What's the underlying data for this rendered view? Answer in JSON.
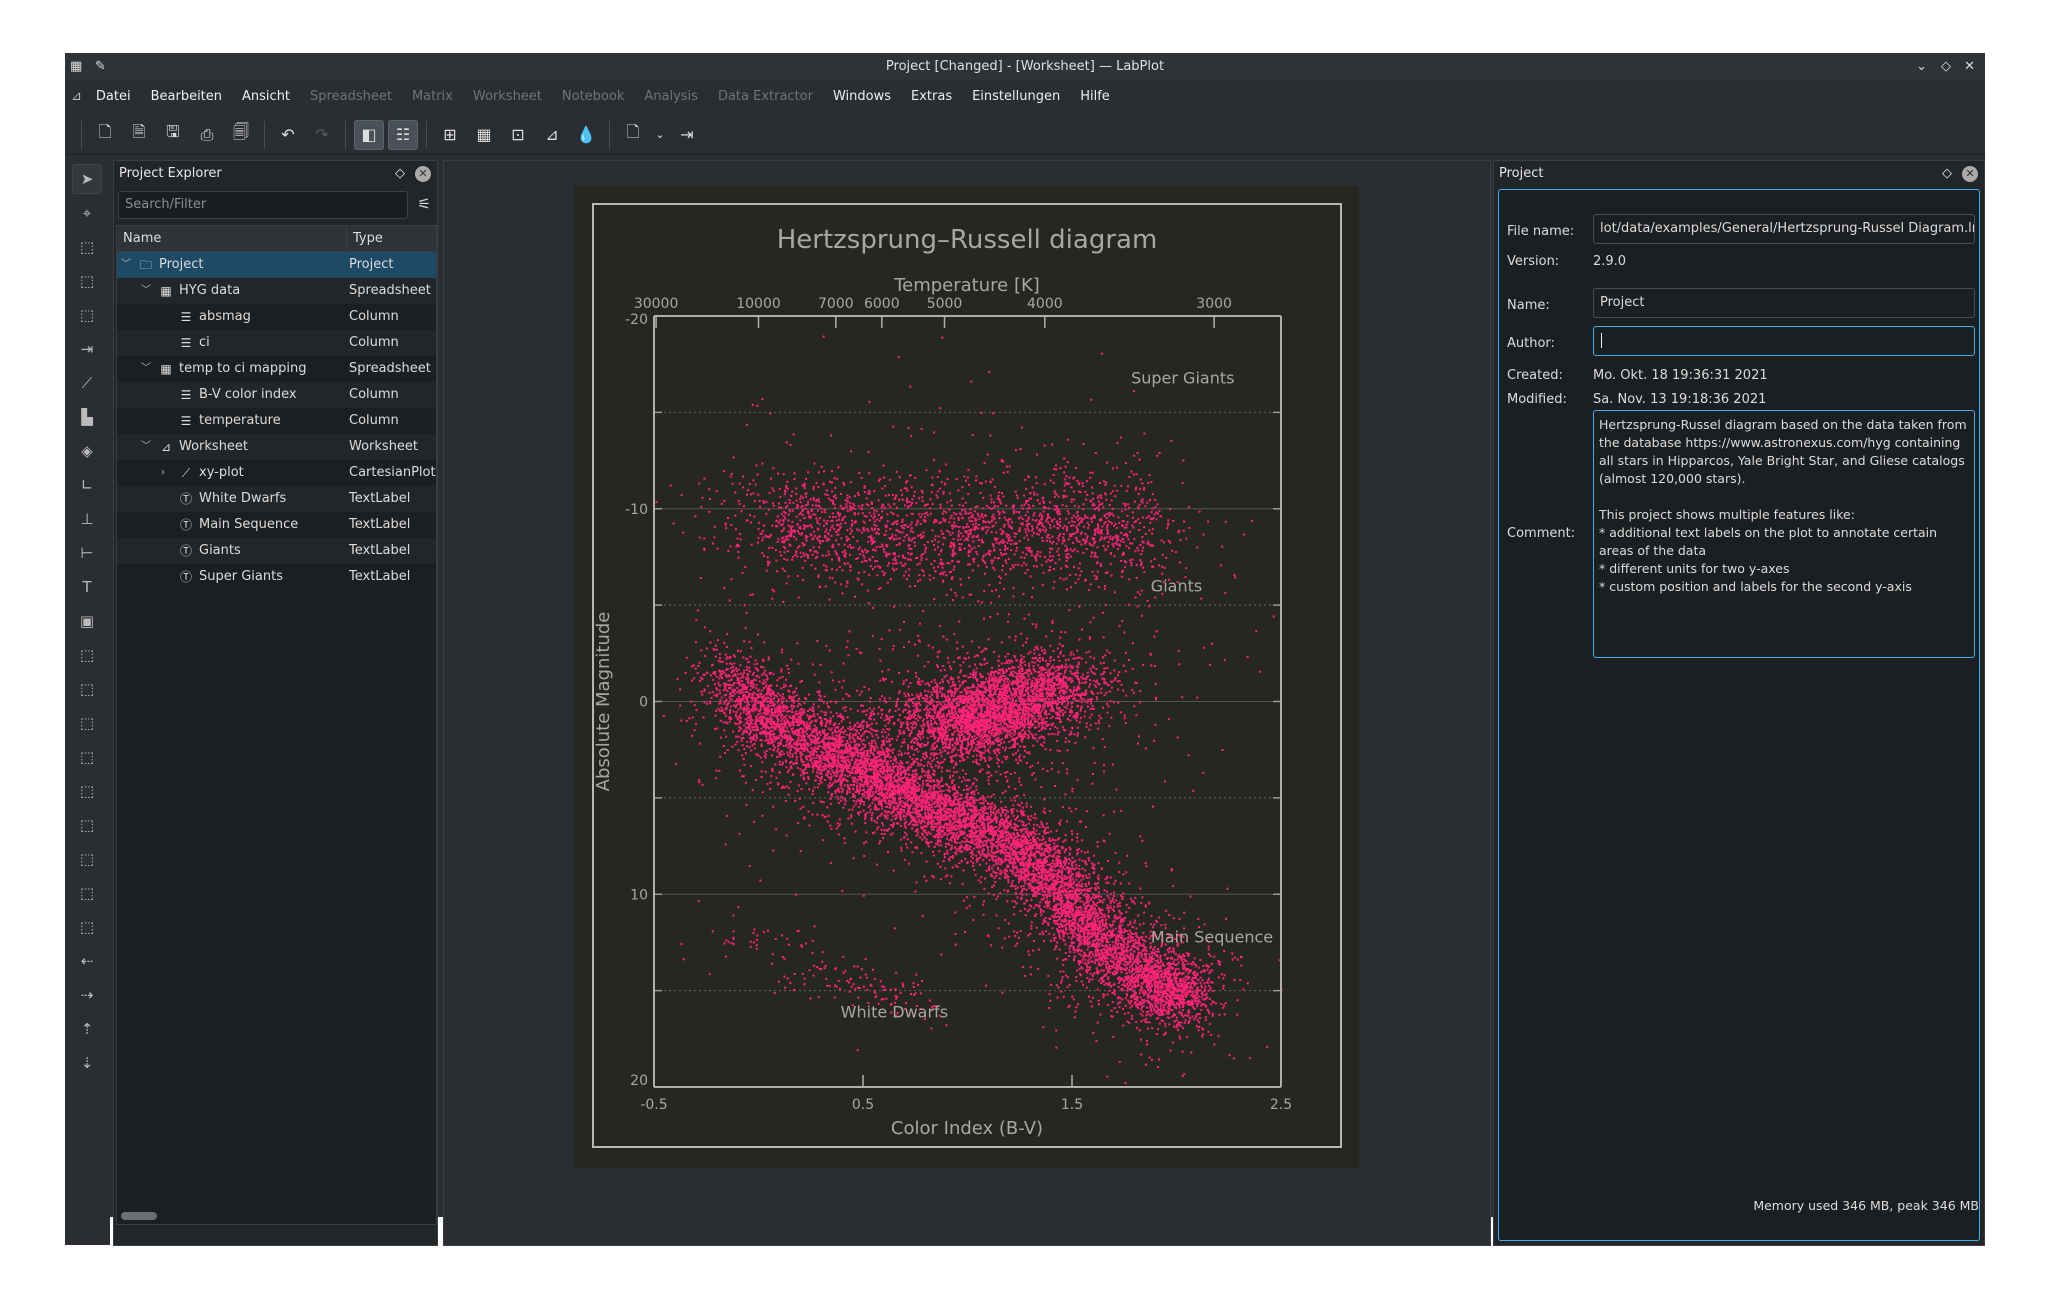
{
  "window": {
    "title": "Project [Changed] - [Worksheet] — LabPlot"
  },
  "menu": [
    {
      "label": "Datei",
      "enabled": true
    },
    {
      "label": "Bearbeiten",
      "enabled": true
    },
    {
      "label": "Ansicht",
      "enabled": true
    },
    {
      "label": "Spreadsheet",
      "enabled": false
    },
    {
      "label": "Matrix",
      "enabled": false
    },
    {
      "label": "Worksheet",
      "enabled": false
    },
    {
      "label": "Notebook",
      "enabled": false
    },
    {
      "label": "Analysis",
      "enabled": false
    },
    {
      "label": "Data Extractor",
      "enabled": false
    },
    {
      "label": "Windows",
      "enabled": true
    },
    {
      "label": "Extras",
      "enabled": true
    },
    {
      "label": "Einstellungen",
      "enabled": true
    },
    {
      "label": "Hilfe",
      "enabled": true
    }
  ],
  "explorer": {
    "title": "Project Explorer",
    "search_placeholder": "Search/Filter",
    "columns": [
      "Name",
      "Type"
    ],
    "rows": [
      {
        "name": "Project",
        "type": "Project",
        "level": 0,
        "icon": "folder-icon",
        "toggle": "expanded",
        "selected": true
      },
      {
        "name": "HYG data",
        "type": "Spreadsheet",
        "level": 1,
        "icon": "spreadsheet-icon",
        "toggle": "expanded"
      },
      {
        "name": "absmag",
        "type": "Column",
        "level": 2,
        "icon": "column-icon"
      },
      {
        "name": "ci",
        "type": "Column",
        "level": 2,
        "icon": "column-icon"
      },
      {
        "name": "temp to ci mapping",
        "type": "Spreadsheet",
        "level": 1,
        "icon": "spreadsheet-icon",
        "toggle": "expanded"
      },
      {
        "name": "B-V color index",
        "type": "Column",
        "level": 2,
        "icon": "column-icon"
      },
      {
        "name": "temperature",
        "type": "Column",
        "level": 2,
        "icon": "column-icon"
      },
      {
        "name": "Worksheet",
        "type": "Worksheet",
        "level": 1,
        "icon": "worksheet-icon",
        "toggle": "expanded"
      },
      {
        "name": "xy-plot",
        "type": "CartesianPlot",
        "level": 2,
        "icon": "plot-icon",
        "toggle": "collapsed"
      },
      {
        "name": "White Dwarfs",
        "type": "TextLabel",
        "level": 2,
        "icon": "text-label-icon"
      },
      {
        "name": "Main Sequence",
        "type": "TextLabel",
        "level": 2,
        "icon": "text-label-icon"
      },
      {
        "name": "Giants",
        "type": "TextLabel",
        "level": 2,
        "icon": "text-label-icon"
      },
      {
        "name": "Super Giants",
        "type": "TextLabel",
        "level": 2,
        "icon": "text-label-icon"
      }
    ]
  },
  "properties": {
    "title": "Project",
    "file_name_label": "File name:",
    "file_name": "lot/data/examples/General/Hertzsprung-Russel Diagram.lml",
    "version_label": "Version:",
    "version": "2.9.0",
    "name_label": "Name:",
    "name": "Project",
    "author_label": "Author:",
    "author": "",
    "created_label": "Created:",
    "created": "Mo. Okt. 18 19:36:31 2021",
    "modified_label": "Modified:",
    "modified": "Sa. Nov. 13 19:18:36 2021",
    "comment_label": "Comment:",
    "comment": "Hertzsprung-Russel diagram based on the data taken from the database https://www.astronexus.com/hyg containing all stars in Hipparcos, Yale Bright Star, and Gliese catalogs (almost 120,000 stars).\n\nThis project shows multiple features like:\n* additional text labels on the plot to annotate certain areas of the data\n* different units for two y-axes\n* custom position and labels for the second y-axis"
  },
  "status": {
    "memory": "Memory used 346 MB, peak 346 MB"
  },
  "chart_data": {
    "type": "scatter",
    "title": "Hertzsprung–Russell diagram",
    "xlabel": "Color Index (B-V)",
    "ylabel": "Absolute Magnitude",
    "top_axis_label": "Temperature [K]",
    "xlim": [
      -0.5,
      2.5
    ],
    "ylim": [
      -20,
      20
    ],
    "y_inverted": true,
    "xticks": [
      -0.5,
      0.5,
      1.5,
      2.5
    ],
    "xtick_labels": [
      "-0.5",
      "0.5",
      "1.5",
      "2.5"
    ],
    "yticks": [
      -20,
      -10,
      0,
      10,
      20
    ],
    "ytick_labels": [
      "-20",
      "-10",
      "0",
      "10",
      "20"
    ],
    "top_ticks": [
      {
        "label": "30000",
        "ci": -0.49
      },
      {
        "label": "10000",
        "ci": 0.0
      },
      {
        "label": "7000",
        "ci": 0.37
      },
      {
        "label": "6000",
        "ci": 0.59
      },
      {
        "label": "5000",
        "ci": 0.89
      },
      {
        "label": "4000",
        "ci": 1.37
      },
      {
        "label": "3000",
        "ci": 2.18
      }
    ],
    "grid": true,
    "marker_color": "#ff2277",
    "annotations": [
      {
        "text": "Super Giants",
        "x": 2.03,
        "y": -16.5
      },
      {
        "text": "Giants",
        "x": 2.0,
        "y": -5.7
      },
      {
        "text": "Main Sequence",
        "x": 2.17,
        "y": 12.5
      },
      {
        "text": "White Dwarfs",
        "x": 0.65,
        "y": 16.4
      }
    ],
    "series": [
      {
        "points": [
          [
            -0.15,
            -1.5
          ],
          [
            0.0,
            0.5
          ],
          [
            0.15,
            1.5
          ],
          [
            0.3,
            2.3
          ],
          [
            0.45,
            3.2
          ],
          [
            0.6,
            4.0
          ],
          [
            0.7,
            4.8
          ],
          [
            0.85,
            5.6
          ],
          [
            1.0,
            6.3
          ],
          [
            1.15,
            7.0
          ],
          [
            1.3,
            8.0
          ],
          [
            1.4,
            9.2
          ],
          [
            1.5,
            10.5
          ],
          [
            1.6,
            11.8
          ],
          [
            1.7,
            13.0
          ],
          [
            1.85,
            14.2
          ],
          [
            2.0,
            15.0
          ]
        ]
      },
      {
        "points": [
          [
            0.85,
            0.8
          ],
          [
            1.0,
            0.6
          ],
          [
            1.15,
            0.2
          ],
          [
            1.3,
            -0.5
          ],
          [
            1.45,
            -1.3
          ],
          [
            1.0,
            1.5
          ]
        ]
      },
      {
        "points": [
          [
            0.0,
            -9.5
          ],
          [
            0.2,
            -9.3
          ],
          [
            0.4,
            -9.0
          ],
          [
            0.7,
            -8.8
          ],
          [
            0.95,
            -8.8
          ],
          [
            1.2,
            -9.0
          ],
          [
            1.45,
            -9.4
          ],
          [
            1.7,
            -9.0
          ]
        ]
      },
      {
        "points": [
          [
            -0.1,
            11.8
          ],
          [
            0.1,
            13.0
          ],
          [
            0.3,
            14.0
          ],
          [
            0.5,
            14.8
          ],
          [
            0.7,
            15.3
          ]
        ]
      }
    ]
  }
}
